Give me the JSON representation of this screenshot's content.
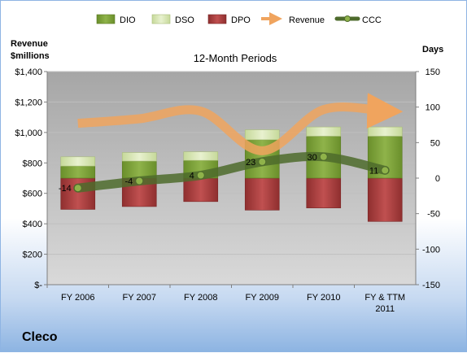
{
  "chart_data": {
    "type": "bar",
    "title": "12-Month Periods",
    "categories": [
      "FY 2006",
      "FY 2007",
      "FY 2008",
      "FY 2009",
      "FY 2010",
      "FY & TTM 2011"
    ],
    "left_axis": {
      "title_line1": "Revenue",
      "title_line2": "$millions",
      "ylim": [
        0,
        1400
      ],
      "ticks": [
        0,
        200,
        400,
        600,
        800,
        1000,
        1200,
        1400
      ],
      "tick_labels": [
        "$-",
        "$200",
        "$400",
        "$600",
        "$800",
        "$1,000",
        "$1,200",
        "$1,400"
      ]
    },
    "right_axis": {
      "title": "Days",
      "ylim": [
        -150,
        150
      ],
      "ticks": [
        -150,
        -100,
        -50,
        0,
        50,
        100,
        150
      ],
      "tick_labels": [
        "-150",
        "-100",
        "-50",
        "0",
        "50",
        "100",
        "150"
      ]
    },
    "series": [
      {
        "name": "DIO",
        "values": [
          17,
          24,
          25,
          54,
          59,
          59
        ],
        "color": "#7ea33a"
      },
      {
        "name": "DSO",
        "values": [
          13,
          12,
          12,
          14,
          13,
          13
        ],
        "color": "#dbe9b6"
      },
      {
        "name": "DPO",
        "values": [
          -44,
          -40,
          -33,
          -45,
          -42,
          -61
        ],
        "color": "#a83a3a"
      },
      {
        "name": "Revenue",
        "values": [
          1060,
          1090,
          1140,
          880,
          1150,
          1140
        ],
        "color": "#f0a45e"
      },
      {
        "name": "CCC",
        "values": [
          -14,
          -4,
          4,
          23,
          30,
          11
        ],
        "color": "#4e6b2c"
      }
    ],
    "ccc_labels": [
      "-14",
      "-4",
      "4",
      "23",
      "30",
      "11"
    ],
    "grid": true,
    "legend_position": "top"
  },
  "company": "Cleco"
}
